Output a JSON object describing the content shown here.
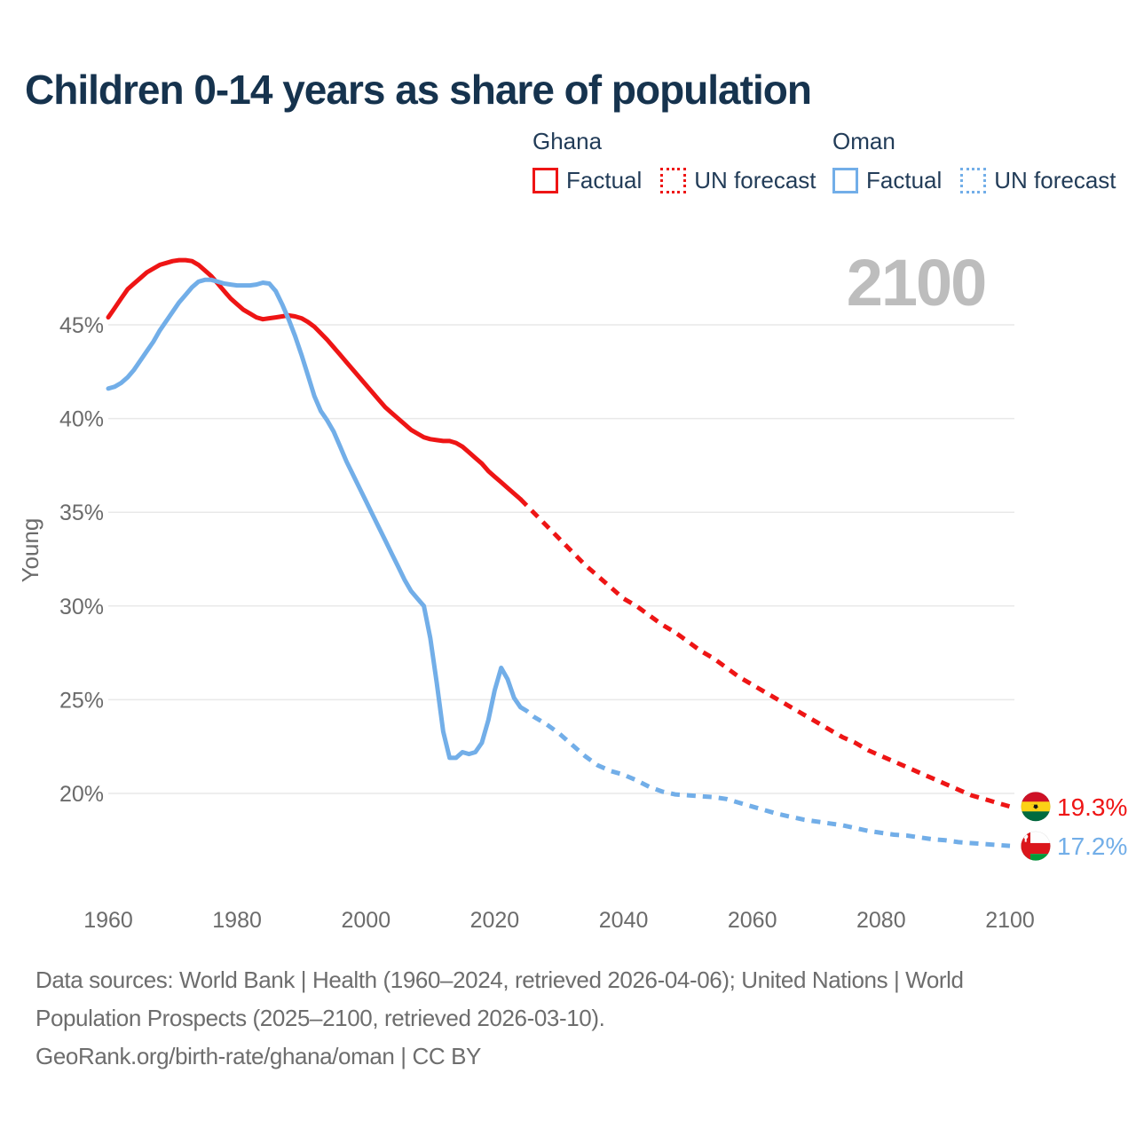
{
  "header": {
    "title": "Children 0-14 years as share of population"
  },
  "legend": {
    "groups": [
      {
        "name": "Ghana",
        "color": "#ee1515",
        "items": [
          {
            "label": "Factual",
            "style": "solid"
          },
          {
            "label": "UN forecast",
            "style": "dashed"
          }
        ]
      },
      {
        "name": "Oman",
        "color": "#72aee8",
        "items": [
          {
            "label": "Factual",
            "style": "solid"
          },
          {
            "label": "UN forecast",
            "style": "dashed"
          }
        ]
      }
    ]
  },
  "chart_data": {
    "type": "line",
    "title": "Children 0-14 years as share of population",
    "ylabel": "Young",
    "xlabel": "",
    "x_ticks": [
      1960,
      1980,
      2000,
      2020,
      2040,
      2060,
      2080,
      2100
    ],
    "y_ticks": [
      20,
      25,
      30,
      35,
      40,
      45
    ],
    "xlim": [
      1960,
      2100
    ],
    "ylim": [
      16,
      49
    ],
    "grid": true,
    "legend_position": "top-right",
    "watermark": "2100",
    "colors": {
      "ghana": "#ee1515",
      "oman": "#72aee8",
      "gridline": "#e9e9e9",
      "axis_text": "#6b6b6b",
      "watermark": "#bdbdbd",
      "title": "#16334e",
      "footer": "#6d6d6d"
    },
    "series": [
      {
        "id": "ghana-factual",
        "name": "Ghana Factual",
        "color": "#ee1515",
        "style": "solid",
        "points": [
          [
            1960,
            45.4
          ],
          [
            1961,
            45.9
          ],
          [
            1962,
            46.4
          ],
          [
            1963,
            46.9
          ],
          [
            1964,
            47.2
          ],
          [
            1965,
            47.5
          ],
          [
            1966,
            47.8
          ],
          [
            1967,
            48.0
          ],
          [
            1968,
            48.2
          ],
          [
            1969,
            48.3
          ],
          [
            1970,
            48.4
          ],
          [
            1971,
            48.45
          ],
          [
            1972,
            48.45
          ],
          [
            1973,
            48.4
          ],
          [
            1974,
            48.2
          ],
          [
            1975,
            47.9
          ],
          [
            1976,
            47.6
          ],
          [
            1977,
            47.2
          ],
          [
            1978,
            46.8
          ],
          [
            1979,
            46.4
          ],
          [
            1980,
            46.1
          ],
          [
            1981,
            45.8
          ],
          [
            1982,
            45.6
          ],
          [
            1983,
            45.4
          ],
          [
            1984,
            45.3
          ],
          [
            1985,
            45.35
          ],
          [
            1986,
            45.4
          ],
          [
            1987,
            45.45
          ],
          [
            1988,
            45.5
          ],
          [
            1989,
            45.45
          ],
          [
            1990,
            45.35
          ],
          [
            1991,
            45.15
          ],
          [
            1992,
            44.9
          ],
          [
            1993,
            44.55
          ],
          [
            1994,
            44.2
          ],
          [
            1995,
            43.8
          ],
          [
            1996,
            43.4
          ],
          [
            1997,
            43.0
          ],
          [
            1998,
            42.6
          ],
          [
            1999,
            42.2
          ],
          [
            2000,
            41.8
          ],
          [
            2001,
            41.4
          ],
          [
            2002,
            41.0
          ],
          [
            2003,
            40.6
          ],
          [
            2004,
            40.3
          ],
          [
            2005,
            40.0
          ],
          [
            2006,
            39.7
          ],
          [
            2007,
            39.4
          ],
          [
            2008,
            39.2
          ],
          [
            2009,
            39.0
          ],
          [
            2010,
            38.9
          ],
          [
            2011,
            38.85
          ],
          [
            2012,
            38.8
          ],
          [
            2013,
            38.8
          ],
          [
            2014,
            38.7
          ],
          [
            2015,
            38.5
          ],
          [
            2016,
            38.2
          ],
          [
            2017,
            37.9
          ],
          [
            2018,
            37.6
          ],
          [
            2019,
            37.2
          ],
          [
            2020,
            36.9
          ],
          [
            2021,
            36.6
          ],
          [
            2022,
            36.3
          ],
          [
            2023,
            36.0
          ],
          [
            2024,
            35.7
          ]
        ]
      },
      {
        "id": "ghana-forecast",
        "name": "Ghana UN forecast",
        "color": "#ee1515",
        "style": "dashed",
        "points": [
          [
            2024,
            35.7
          ],
          [
            2026,
            35.0
          ],
          [
            2028,
            34.3
          ],
          [
            2030,
            33.6
          ],
          [
            2032,
            32.9
          ],
          [
            2034,
            32.2
          ],
          [
            2036,
            31.6
          ],
          [
            2038,
            31.0
          ],
          [
            2040,
            30.4
          ],
          [
            2042,
            30.0
          ],
          [
            2044,
            29.5
          ],
          [
            2046,
            29.0
          ],
          [
            2048,
            28.6
          ],
          [
            2050,
            28.1
          ],
          [
            2052,
            27.6
          ],
          [
            2054,
            27.2
          ],
          [
            2056,
            26.7
          ],
          [
            2058,
            26.2
          ],
          [
            2060,
            25.8
          ],
          [
            2062,
            25.4
          ],
          [
            2064,
            25.0
          ],
          [
            2066,
            24.6
          ],
          [
            2068,
            24.2
          ],
          [
            2070,
            23.8
          ],
          [
            2072,
            23.4
          ],
          [
            2074,
            23.0
          ],
          [
            2076,
            22.7
          ],
          [
            2078,
            22.3
          ],
          [
            2080,
            22.0
          ],
          [
            2082,
            21.7
          ],
          [
            2084,
            21.4
          ],
          [
            2086,
            21.1
          ],
          [
            2088,
            20.8
          ],
          [
            2090,
            20.5
          ],
          [
            2092,
            20.2
          ],
          [
            2094,
            19.9
          ],
          [
            2096,
            19.7
          ],
          [
            2098,
            19.5
          ],
          [
            2100,
            19.3
          ]
        ]
      },
      {
        "id": "oman-factual",
        "name": "Oman Factual",
        "color": "#72aee8",
        "style": "solid",
        "points": [
          [
            1960,
            41.6
          ],
          [
            1961,
            41.7
          ],
          [
            1962,
            41.9
          ],
          [
            1963,
            42.2
          ],
          [
            1964,
            42.6
          ],
          [
            1965,
            43.1
          ],
          [
            1966,
            43.6
          ],
          [
            1967,
            44.1
          ],
          [
            1968,
            44.7
          ],
          [
            1969,
            45.2
          ],
          [
            1970,
            45.7
          ],
          [
            1971,
            46.2
          ],
          [
            1972,
            46.6
          ],
          [
            1973,
            47.0
          ],
          [
            1974,
            47.3
          ],
          [
            1975,
            47.4
          ],
          [
            1976,
            47.4
          ],
          [
            1977,
            47.3
          ],
          [
            1978,
            47.2
          ],
          [
            1979,
            47.15
          ],
          [
            1980,
            47.1
          ],
          [
            1981,
            47.1
          ],
          [
            1982,
            47.1
          ],
          [
            1983,
            47.15
          ],
          [
            1984,
            47.25
          ],
          [
            1985,
            47.2
          ],
          [
            1986,
            46.8
          ],
          [
            1987,
            46.1
          ],
          [
            1988,
            45.3
          ],
          [
            1989,
            44.4
          ],
          [
            1990,
            43.4
          ],
          [
            1991,
            42.3
          ],
          [
            1992,
            41.2
          ],
          [
            1993,
            40.4
          ],
          [
            1994,
            39.9
          ],
          [
            1995,
            39.3
          ],
          [
            1996,
            38.5
          ],
          [
            1997,
            37.7
          ],
          [
            1998,
            37.0
          ],
          [
            1999,
            36.3
          ],
          [
            2000,
            35.6
          ],
          [
            2001,
            34.9
          ],
          [
            2002,
            34.2
          ],
          [
            2003,
            33.5
          ],
          [
            2004,
            32.8
          ],
          [
            2005,
            32.1
          ],
          [
            2006,
            31.4
          ],
          [
            2007,
            30.8
          ],
          [
            2008,
            30.4
          ],
          [
            2009,
            30.0
          ],
          [
            2010,
            28.3
          ],
          [
            2011,
            25.9
          ],
          [
            2012,
            23.3
          ],
          [
            2013,
            21.9
          ],
          [
            2014,
            21.9
          ],
          [
            2015,
            22.2
          ],
          [
            2016,
            22.1
          ],
          [
            2017,
            22.2
          ],
          [
            2018,
            22.7
          ],
          [
            2019,
            23.9
          ],
          [
            2020,
            25.5
          ],
          [
            2021,
            26.7
          ],
          [
            2022,
            26.1
          ],
          [
            2023,
            25.1
          ],
          [
            2024,
            24.6
          ]
        ]
      },
      {
        "id": "oman-forecast",
        "name": "Oman UN forecast",
        "color": "#72aee8",
        "style": "dashed",
        "points": [
          [
            2024,
            24.6
          ],
          [
            2025,
            24.4
          ],
          [
            2026,
            24.1
          ],
          [
            2028,
            23.7
          ],
          [
            2030,
            23.2
          ],
          [
            2032,
            22.6
          ],
          [
            2034,
            22.0
          ],
          [
            2036,
            21.5
          ],
          [
            2038,
            21.2
          ],
          [
            2040,
            21.0
          ],
          [
            2042,
            20.7
          ],
          [
            2044,
            20.35
          ],
          [
            2046,
            20.1
          ],
          [
            2048,
            19.95
          ],
          [
            2050,
            19.9
          ],
          [
            2052,
            19.85
          ],
          [
            2054,
            19.8
          ],
          [
            2056,
            19.7
          ],
          [
            2058,
            19.5
          ],
          [
            2060,
            19.3
          ],
          [
            2062,
            19.1
          ],
          [
            2064,
            18.9
          ],
          [
            2066,
            18.75
          ],
          [
            2068,
            18.6
          ],
          [
            2070,
            18.5
          ],
          [
            2072,
            18.4
          ],
          [
            2074,
            18.3
          ],
          [
            2076,
            18.15
          ],
          [
            2078,
            18.0
          ],
          [
            2080,
            17.9
          ],
          [
            2082,
            17.8
          ],
          [
            2084,
            17.75
          ],
          [
            2086,
            17.65
          ],
          [
            2088,
            17.55
          ],
          [
            2090,
            17.5
          ],
          [
            2092,
            17.4
          ],
          [
            2094,
            17.35
          ],
          [
            2096,
            17.3
          ],
          [
            2098,
            17.25
          ],
          [
            2100,
            17.2
          ]
        ]
      }
    ],
    "end_labels": [
      {
        "series": "Ghana",
        "label": "19.3%",
        "value_num": 19.3,
        "color": "#ee1515",
        "flag": "ghana"
      },
      {
        "series": "Oman",
        "label": "17.2%",
        "value_num": 17.2,
        "color": "#72aee8",
        "flag": "oman"
      }
    ]
  },
  "footer": {
    "lines": [
      "Data sources: World Bank | Health (1960–2024, retrieved 2026-04-06); United Nations | World",
      "Population Prospects (2025–2100, retrieved 2026-03-10).",
      "GeoRank.org/birth-rate/ghana/oman | CC BY"
    ]
  }
}
